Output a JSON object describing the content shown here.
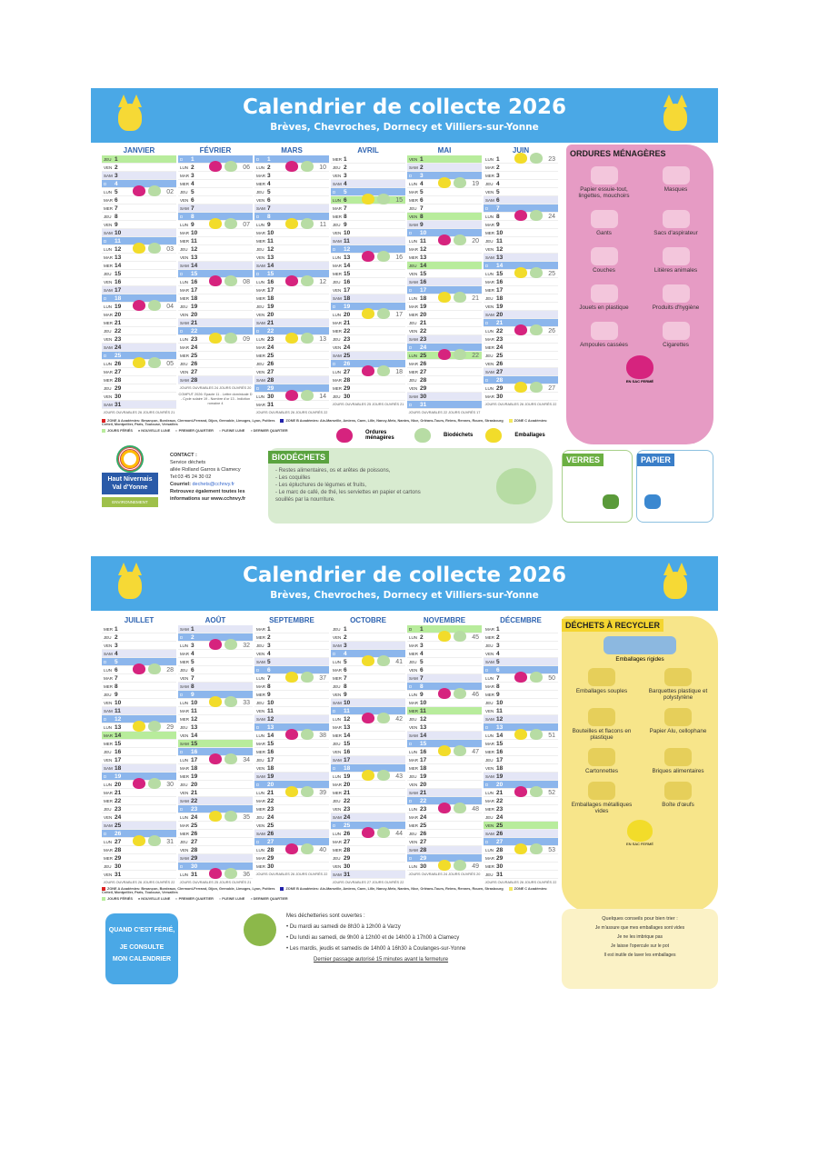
{
  "header": {
    "title": "Calendrier de collecte 2026",
    "subtitle": "Brèves, Chevroches, Dornecy et Villiers-sur-Yonne"
  },
  "weekdays": [
    "LUN",
    "MAR",
    "MER",
    "JEU",
    "VEN",
    "SAM",
    "D"
  ],
  "colors": {
    "header": "#4aa8e6",
    "ordures": "#d6237e",
    "biodechets": "#b7dca4",
    "emballages": "#f2dc2a",
    "holiday": "#b8ec9c",
    "sunday": "#8cb6ec"
  },
  "months": [
    {
      "name": "JANVIER",
      "start": 3,
      "days": 31,
      "firstWeek": 1,
      "holidays": [
        1
      ],
      "footer": "JOURS OUVRABLES 26 JOURS OUVRÉS 21"
    },
    {
      "name": "FÉVRIER",
      "start": 6,
      "days": 28,
      "firstWeek": 5,
      "holidays": [],
      "footer": "JOURS OUVRABLES 24 JOURS OUVRÉS 20",
      "extra": "COMPUT 2026: Epacte 11 - Lettre dominicale D - Cycle solaire 19 - Nombre d'or 13 - Indiction romaine 4"
    },
    {
      "name": "MARS",
      "start": 6,
      "days": 31,
      "firstWeek": 9,
      "holidays": [],
      "footer": "JOURS OUVRABLES 26 JOURS OUVRÉS 22"
    },
    {
      "name": "AVRIL",
      "start": 2,
      "days": 30,
      "firstWeek": 14,
      "holidays": [
        6
      ],
      "footer": "JOURS OUVRABLES 25 JOURS OUVRÉS 21"
    },
    {
      "name": "MAI",
      "start": 4,
      "days": 31,
      "firstWeek": 18,
      "holidays": [
        1,
        8,
        14,
        25
      ],
      "footer": "JOURS OUVRABLES 22 JOURS OUVRÉS 17"
    },
    {
      "name": "JUIN",
      "start": 0,
      "days": 30,
      "firstWeek": 23,
      "holidays": [],
      "footer": "JOURS OUVRABLES 26 JOURS OUVRÉS 22"
    },
    {
      "name": "JUILLET",
      "start": 2,
      "days": 31,
      "firstWeek": 27,
      "holidays": [
        14
      ],
      "footer": "JOURS OUVRABLES 26 JOURS OUVRÉS 22"
    },
    {
      "name": "AOÛT",
      "start": 5,
      "days": 31,
      "firstWeek": 31,
      "holidays": [
        15
      ],
      "footer": "JOURS OUVRABLES 25 JOURS OUVRÉS 21"
    },
    {
      "name": "SEPTEMBRE",
      "start": 1,
      "days": 30,
      "firstWeek": 36,
      "holidays": [],
      "footer": "JOURS OUVRABLES 26 JOURS OUVRÉS 22"
    },
    {
      "name": "OCTOBRE",
      "start": 3,
      "days": 31,
      "firstWeek": 40,
      "holidays": [],
      "footer": "JOURS OUVRABLES 27 JOURS OUVRÉS 22"
    },
    {
      "name": "NOVEMBRE",
      "start": 6,
      "days": 30,
      "firstWeek": 44,
      "holidays": [
        1,
        11
      ],
      "footer": "JOURS OUVRABLES 24 JOURS OUVRÉS 20"
    },
    {
      "name": "DÉCEMBRE",
      "start": 1,
      "days": 31,
      "firstWeek": 49,
      "holidays": [
        25
      ],
      "footer": "JOURS OUVRABLES 26 JOURS OUVRÉS 22"
    }
  ],
  "legend": {
    "zoneA": "ZONE A Académies: Besançon, Bordeaux, Clermont-Ferrand, Dijon, Grenoble, Limoges, Lyon, Poitiers",
    "zoneB": "ZONE B Académies: Aix-Marseille, Amiens, Caen, Lille, Nancy-Metz, Nantes, Nice, Orléans-Tours, Reims, Rennes, Rouen, Strasbourg",
    "zoneC": "ZONE C Académies: Créteil, Montpellier, Paris, Toulouse, Versailles",
    "feries": "JOURS FÉRIÉS",
    "nl": "NOUVELLE LUNE",
    "pq": "PREMIER QUARTIER",
    "pl": "PLEINE LUNE",
    "dq": "DERNIER QUARTIER"
  },
  "bag_legend": {
    "ordures": "Ordures ménagères",
    "biodechets": "Biodéchets",
    "emballages": "Emballages"
  },
  "contact": {
    "title": "CONTACT :",
    "service": "Service déchets",
    "address": "allée Rolland Garros à Clamecy",
    "tel": "Tel:03 45 24 30 02",
    "email_label": "Courriel:",
    "email": "dechets@cchnvy.fr",
    "web": "Retrouvez également toutes les informations sur www.cchnvy.fr"
  },
  "logo": {
    "line1": "Haut Nivernais",
    "line2": "Val d'Yonne",
    "badge": "ENVIRONNEMENT"
  },
  "biodechets": {
    "title": "BIODÉCHETS",
    "items": [
      "- Restes alimentaires, os et arêtes de poissons,",
      "- Les coquilles",
      "- Les épluchures de légumes et fruits,",
      "- Le marc de café, de thé, les serviettes en papier et cartons souillés par la nourriture."
    ]
  },
  "ordures": {
    "title": "ORDURES MÉNAGÈRES",
    "items": [
      "Papier essuie-tout, lingettes, mouchoirs",
      "Masques",
      "Gants",
      "Sacs d'aspirateur",
      "Couches",
      "Litières animales",
      "Jouets en plastique",
      "Produits d'hygiène",
      "Ampoules cassées",
      "Cigarettes"
    ],
    "note": "EN SAC FERMÉ"
  },
  "verres": {
    "title": "VERRES"
  },
  "papier": {
    "title": "PAPIER"
  },
  "recycler": {
    "title": "DÉCHETS À RECYCLER",
    "wide": "Emballages rigides",
    "items": [
      "Emballages souples",
      "Barquettes plastique et polystyrène",
      "Bouteilles et flacons en plastique",
      "Papier Alu, cellophane",
      "Cartonnettes",
      "Briques alimentaires",
      "Emballages métalliques vides",
      "Boîte d'œufs"
    ],
    "note": "EN SAC FERMÉ"
  },
  "ferie": {
    "l1": "QUAND C'EST FÉRIÉ,",
    "l2": "JE CONSULTE",
    "l3": "MON CALENDRIER"
  },
  "dechetteries": {
    "title": "Mes déchetteries sont ouvertes :",
    "items": [
      "Du mardi au samedi de 8h30 à 12h00 à Varzy",
      "Du lundi au samedi, de 9h00 à 12h00 et de 14h00 à 17h00 à Clamecy",
      "Les mardis, jeudis et samedis de 14h00 à 16h30 à Coulanges-sur-Yonne"
    ],
    "note": "Dernier passage autorisé 15 minutes avant la fermeture"
  },
  "conseils": {
    "title": "Quelques conseils pour bien trier :",
    "items": [
      "Je m'assure que mes emballages sont vides",
      "Je ne les imbrique pas",
      "Je laisse l'opercule sur le pot",
      "Il est inutile de laver les emballages"
    ]
  }
}
